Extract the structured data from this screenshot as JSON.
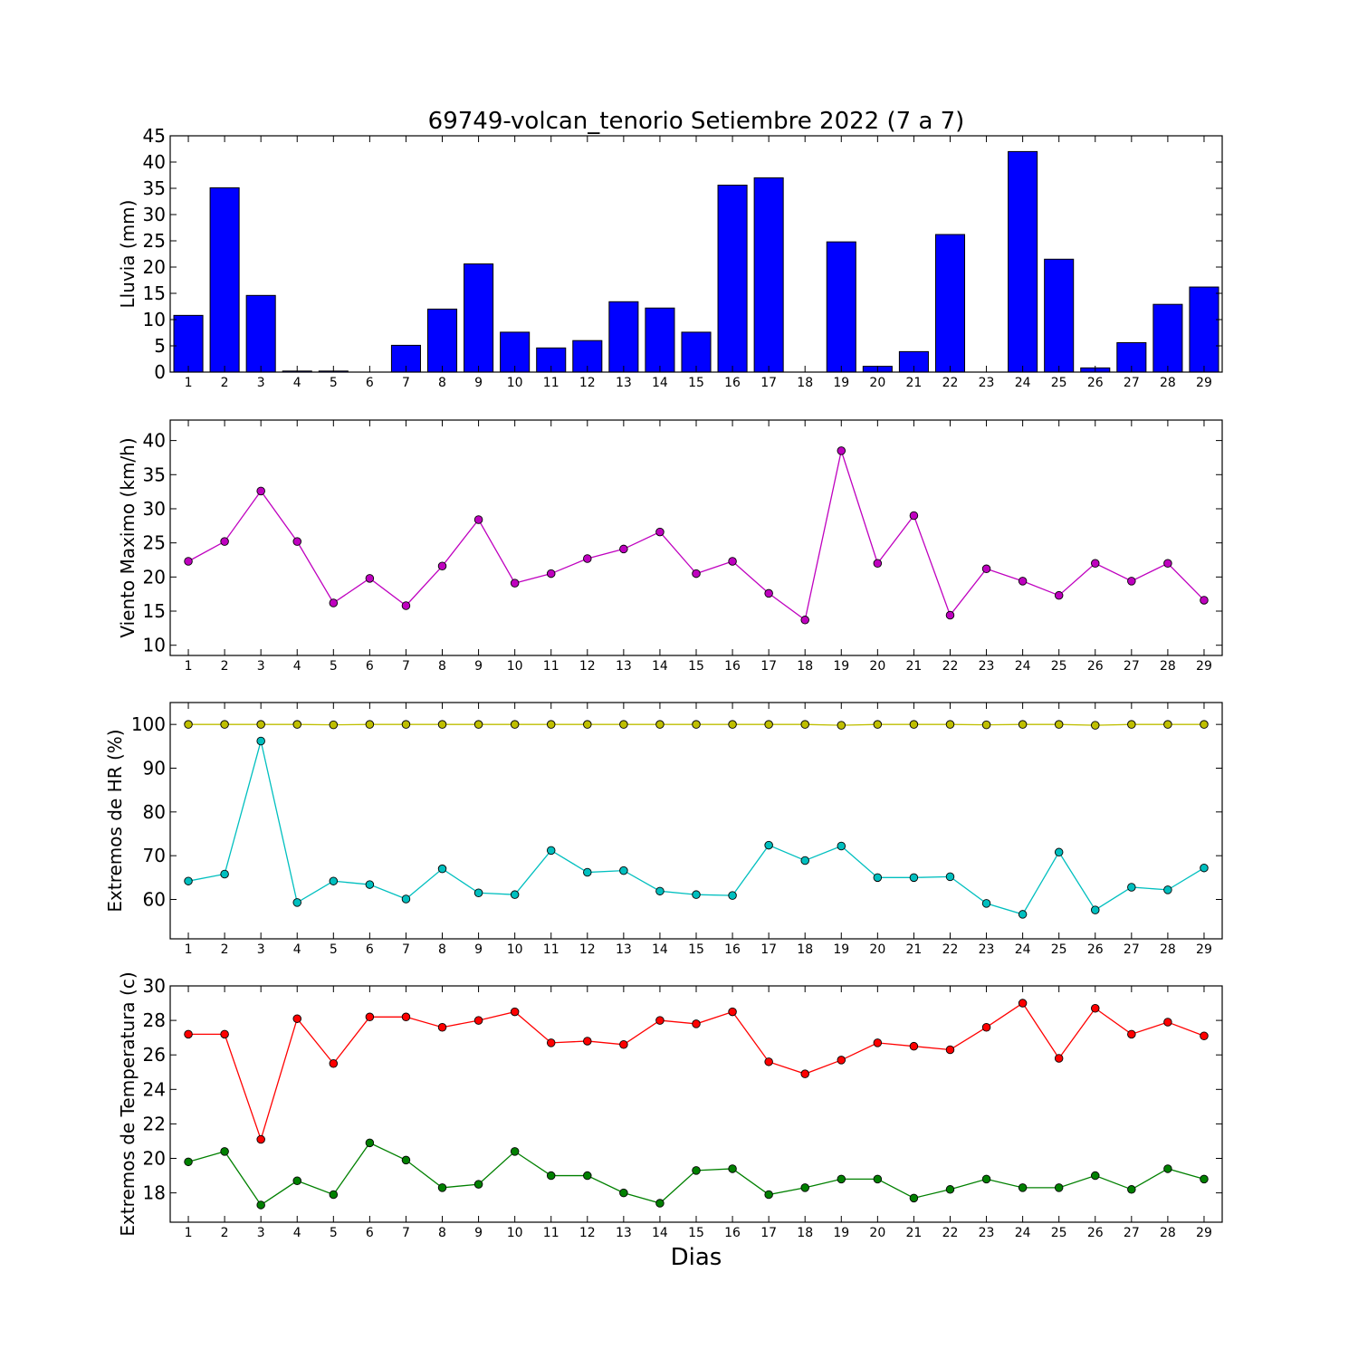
{
  "figure_title": "69749-volcan_tenorio Setiembre 2022  (7 a 7)",
  "xlabel": "Dias",
  "chart_data": [
    {
      "type": "bar",
      "ylabel": "Lluvia (mm)",
      "ylim": [
        0,
        45
      ],
      "yticks": [
        0,
        5,
        10,
        15,
        20,
        25,
        30,
        35,
        40,
        45
      ],
      "x": [
        1,
        2,
        3,
        4,
        5,
        6,
        7,
        8,
        9,
        10,
        11,
        12,
        13,
        14,
        15,
        16,
        17,
        18,
        19,
        20,
        21,
        22,
        23,
        24,
        25,
        26,
        27,
        28,
        29
      ],
      "xlim": [
        0.5,
        29.5
      ],
      "series": [
        {
          "color": "#0000ff",
          "values": [
            10.8,
            35.1,
            14.6,
            0.2,
            0.2,
            0.0,
            5.1,
            12.0,
            20.6,
            7.6,
            4.6,
            6.0,
            13.4,
            12.2,
            7.6,
            35.6,
            37.0,
            0.0,
            24.8,
            1.1,
            3.9,
            26.2,
            0.0,
            42.0,
            21.5,
            0.8,
            5.6,
            12.9,
            16.2
          ]
        }
      ],
      "grid": false
    },
    {
      "type": "line",
      "ylabel": "Viento Maximo (km/h)",
      "ylim": [
        8.5,
        43
      ],
      "yticks": [
        10,
        15,
        20,
        25,
        30,
        35,
        40
      ],
      "x": [
        1,
        2,
        3,
        4,
        5,
        6,
        7,
        8,
        9,
        10,
        11,
        12,
        13,
        14,
        15,
        16,
        17,
        18,
        19,
        20,
        21,
        22,
        23,
        24,
        25,
        26,
        27,
        28,
        29
      ],
      "xlim": [
        0.5,
        29.5
      ],
      "series": [
        {
          "color": "#bf00bf",
          "values": [
            22.3,
            25.2,
            32.6,
            25.2,
            16.2,
            19.8,
            15.8,
            21.6,
            28.4,
            19.1,
            20.5,
            22.7,
            24.1,
            26.6,
            20.5,
            22.3,
            17.6,
            13.7,
            38.5,
            22.0,
            29.0,
            14.4,
            21.2,
            19.4,
            17.3,
            22.0,
            19.4,
            22.0,
            16.6
          ]
        }
      ],
      "grid": false
    },
    {
      "type": "line",
      "ylabel": "Extremos de HR (%)",
      "ylim": [
        51,
        105
      ],
      "yticks": [
        60,
        70,
        80,
        90,
        100
      ],
      "x": [
        1,
        2,
        3,
        4,
        5,
        6,
        7,
        8,
        9,
        10,
        11,
        12,
        13,
        14,
        15,
        16,
        17,
        18,
        19,
        20,
        21,
        22,
        23,
        24,
        25,
        26,
        27,
        28,
        29
      ],
      "xlim": [
        0.5,
        29.5
      ],
      "series": [
        {
          "color": "#bfbf00",
          "values": [
            100.0,
            100.0,
            100.0,
            100.0,
            99.9,
            100.0,
            100.0,
            100.0,
            100.0,
            100.0,
            100.0,
            100.0,
            100.0,
            100.0,
            100.0,
            100.0,
            100.0,
            100.0,
            99.8,
            100.0,
            100.0,
            100.0,
            99.9,
            100.0,
            100.0,
            99.8,
            100.0,
            100.0,
            100.0
          ]
        },
        {
          "color": "#00bfbf",
          "values": [
            64.2,
            65.8,
            96.2,
            59.3,
            64.2,
            63.4,
            60.1,
            67.0,
            61.5,
            61.1,
            71.2,
            66.2,
            66.6,
            61.9,
            61.1,
            60.9,
            72.4,
            68.9,
            72.2,
            65.0,
            65.0,
            65.2,
            59.1,
            56.6,
            70.8,
            57.6,
            62.8,
            62.2,
            67.2
          ]
        }
      ],
      "grid": false
    },
    {
      "type": "line",
      "ylabel": "Extremos de Temperatura (c)",
      "ylim": [
        16.3,
        30
      ],
      "yticks": [
        18,
        20,
        22,
        24,
        26,
        28,
        30
      ],
      "x": [
        1,
        2,
        3,
        4,
        5,
        6,
        7,
        8,
        9,
        10,
        11,
        12,
        13,
        14,
        15,
        16,
        17,
        18,
        19,
        20,
        21,
        22,
        23,
        24,
        25,
        26,
        27,
        28,
        29
      ],
      "xlim": [
        0.5,
        29.5
      ],
      "series": [
        {
          "color": "#ff0000",
          "values": [
            27.2,
            27.2,
            21.1,
            28.1,
            25.5,
            28.2,
            28.2,
            27.6,
            28.0,
            28.5,
            26.7,
            26.8,
            26.6,
            28.0,
            27.8,
            28.5,
            25.6,
            24.9,
            25.7,
            26.7,
            26.5,
            26.3,
            27.6,
            29.0,
            25.8,
            28.7,
            27.2,
            27.9,
            27.1
          ]
        },
        {
          "color": "#008000",
          "values": [
            19.8,
            20.4,
            17.3,
            18.7,
            17.9,
            20.9,
            19.9,
            18.3,
            18.5,
            20.4,
            19.0,
            19.0,
            18.0,
            17.4,
            19.3,
            19.4,
            17.9,
            18.3,
            18.8,
            18.8,
            17.7,
            18.2,
            18.8,
            18.3,
            18.3,
            19.0,
            18.2,
            19.4,
            18.8
          ]
        }
      ],
      "grid": false
    }
  ]
}
